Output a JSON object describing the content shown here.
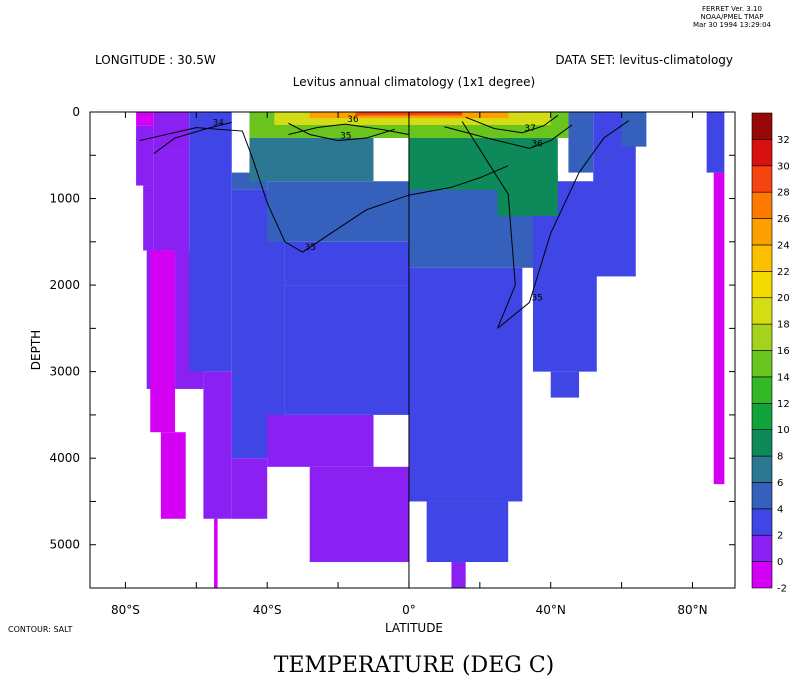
{
  "header": {
    "stamp_lines": [
      "FERRET Ver. 3.10",
      "NOAA/PMEL TMAP",
      "Mar 30 1994 13:29:04"
    ],
    "longitude": "LONGITUDE : 30.5W",
    "dataset": "DATA SET: levitus-climatology",
    "subtitle": "Levitus annual climatology (1x1 degree)"
  },
  "footer": {
    "contour_note": "CONTOUR: SALT",
    "title": "TEMPERATURE (DEG C)"
  },
  "chart_data": {
    "type": "heatmap",
    "title": "TEMPERATURE (DEG C)",
    "subtitle": "Levitus annual climatology (1x1 degree)",
    "xlabel": "LATITUDE",
    "ylabel": "DEPTH",
    "xlim": [
      -90,
      92
    ],
    "ylim": [
      5500,
      0
    ],
    "x_ticks": [
      {
        "value": -80,
        "label": "80°S"
      },
      {
        "value": -40,
        "label": "40°S"
      },
      {
        "value": 0,
        "label": "0°"
      },
      {
        "value": 40,
        "label": "40°N"
      },
      {
        "value": 80,
        "label": "80°N"
      }
    ],
    "y_ticks": [
      {
        "value": 0,
        "label": "0"
      },
      {
        "value": 1000,
        "label": "1000"
      },
      {
        "value": 2000,
        "label": "2000"
      },
      {
        "value": 3000,
        "label": "3000"
      },
      {
        "value": 4000,
        "label": "4000"
      },
      {
        "value": 5000,
        "label": "5000"
      }
    ],
    "colorbar": {
      "levels": [
        -2,
        0,
        2,
        4,
        6,
        8,
        10,
        12,
        14,
        16,
        18,
        20,
        22,
        24,
        26,
        28,
        30,
        32
      ],
      "labels": [
        "-2",
        "0",
        "2",
        "4",
        "6",
        "8",
        "10",
        "12",
        "14",
        "16",
        "18",
        "20",
        "22",
        "24",
        "26",
        "28",
        "30",
        "32"
      ],
      "colors": [
        "#d400f4",
        "#8a20f2",
        "#4046e6",
        "#3560bc",
        "#2c7892",
        "#0e8a5a",
        "#12a23c",
        "#34b828",
        "#6ac41e",
        "#a4d21e",
        "#d4dc14",
        "#f4dc00",
        "#fcc000",
        "#fca000",
        "#fc7a00",
        "#f44410",
        "#d81010",
        "#980808"
      ]
    },
    "cells": [
      {
        "lat": [
          -77,
          -72
        ],
        "depth": [
          0,
          160
        ],
        "band": 0
      },
      {
        "lat": [
          -77,
          -72
        ],
        "depth": [
          160,
          850
        ],
        "band": 1
      },
      {
        "lat": [
          -75,
          -72
        ],
        "depth": [
          850,
          1600
        ],
        "band": 1
      },
      {
        "lat": [
          -74,
          -71
        ],
        "depth": [
          1600,
          3200
        ],
        "band": 1
      },
      {
        "lat": [
          -73,
          -66
        ],
        "depth": [
          1600,
          3700
        ],
        "band": 0
      },
      {
        "lat": [
          -72,
          -62
        ],
        "depth": [
          0,
          450
        ],
        "band": 1
      },
      {
        "lat": [
          -72,
          -62
        ],
        "depth": [
          450,
          1600
        ],
        "band": 1
      },
      {
        "lat": [
          -70,
          -63
        ],
        "depth": [
          3700,
          4700
        ],
        "band": 0
      },
      {
        "lat": [
          -66,
          -58
        ],
        "depth": [
          1600,
          3200
        ],
        "band": 1
      },
      {
        "lat": [
          -62,
          -50
        ],
        "depth": [
          0,
          3000
        ],
        "band": 2
      },
      {
        "lat": [
          -58,
          -50
        ],
        "depth": [
          3000,
          4700
        ],
        "band": 1
      },
      {
        "lat": [
          -55,
          -54
        ],
        "depth": [
          4700,
          5500
        ],
        "band": 0
      },
      {
        "lat": [
          -50,
          -35
        ],
        "depth": [
          900,
          4000
        ],
        "band": 2
      },
      {
        "lat": [
          -50,
          -40
        ],
        "depth": [
          4000,
          4700
        ],
        "band": 1
      },
      {
        "lat": [
          -50,
          -40
        ],
        "depth": [
          700,
          900
        ],
        "band": 3
      },
      {
        "lat": [
          -40,
          -10
        ],
        "depth": [
          3500,
          4100
        ],
        "band": 1
      },
      {
        "lat": [
          -35,
          0
        ],
        "depth": [
          2000,
          3500
        ],
        "band": 2
      },
      {
        "lat": [
          -28,
          0
        ],
        "depth": [
          4100,
          5200
        ],
        "band": 1
      },
      {
        "lat": [
          -35,
          0
        ],
        "depth": [
          1500,
          2000
        ],
        "band": 2
      },
      {
        "lat": [
          -40,
          0
        ],
        "depth": [
          800,
          1500
        ],
        "band": 3
      },
      {
        "lat": [
          0,
          35
        ],
        "depth": [
          800,
          1800
        ],
        "band": 3
      },
      {
        "lat": [
          0,
          32
        ],
        "depth": [
          1800,
          4500
        ],
        "band": 2
      },
      {
        "lat": [
          5,
          28
        ],
        "depth": [
          4500,
          5200
        ],
        "band": 2
      },
      {
        "lat": [
          12,
          16
        ],
        "depth": [
          5200,
          5500
        ],
        "band": 1
      },
      {
        "lat": [
          35,
          53
        ],
        "depth": [
          800,
          3000
        ],
        "band": 2
      },
      {
        "lat": [
          40,
          48
        ],
        "depth": [
          3000,
          3300
        ],
        "band": 2
      },
      {
        "lat": [
          45,
          52
        ],
        "depth": [
          0,
          700
        ],
        "band": 3
      },
      {
        "lat": [
          52,
          64
        ],
        "depth": [
          0,
          1900
        ],
        "band": 2
      },
      {
        "lat": [
          60,
          67
        ],
        "depth": [
          0,
          400
        ],
        "band": 3
      },
      {
        "lat": [
          84,
          89
        ],
        "depth": [
          0,
          700
        ],
        "band": 2
      },
      {
        "lat": [
          86,
          89
        ],
        "depth": [
          700,
          4300
        ],
        "band": 0
      },
      {
        "lat": [
          -45,
          -10
        ],
        "depth": [
          300,
          800
        ],
        "band": 4
      },
      {
        "lat": [
          0,
          42
        ],
        "depth": [
          300,
          900
        ],
        "band": 5
      },
      {
        "lat": [
          25,
          42
        ],
        "depth": [
          700,
          1200
        ],
        "band": 5
      },
      {
        "lat": [
          -45,
          45
        ],
        "depth": [
          0,
          300
        ],
        "band": 8
      },
      {
        "lat": [
          -38,
          40
        ],
        "depth": [
          0,
          150
        ],
        "band": 10
      },
      {
        "lat": [
          -28,
          28
        ],
        "depth": [
          0,
          70
        ],
        "band": 13
      },
      {
        "lat": [
          -15,
          15
        ],
        "depth": [
          0,
          40
        ],
        "band": 15
      }
    ],
    "contours": [
      {
        "label": "34",
        "points": [
          [
            -72,
            480
          ],
          [
            -66,
            300
          ],
          [
            -56,
            180
          ],
          [
            -50,
            120
          ]
        ]
      },
      {
        "label": "35",
        "points": [
          [
            -76,
            330
          ],
          [
            -60,
            180
          ],
          [
            -47,
            220
          ],
          [
            -44,
            550
          ],
          [
            -40,
            1050
          ],
          [
            -35,
            1500
          ],
          [
            -30,
            1620
          ],
          [
            -22,
            1400
          ],
          [
            -12,
            1130
          ],
          [
            0,
            960
          ],
          [
            12,
            870
          ],
          [
            20,
            760
          ],
          [
            28,
            620
          ]
        ]
      },
      {
        "label": "35",
        "points": [
          [
            15,
            110
          ],
          [
            28,
            950
          ],
          [
            30,
            2000
          ],
          [
            25,
            2500
          ],
          [
            34,
            2200
          ],
          [
            40,
            1400
          ],
          [
            48,
            700
          ],
          [
            55,
            300
          ],
          [
            62,
            100
          ]
        ]
      },
      {
        "label": "35",
        "points": [
          [
            -34,
            130
          ],
          [
            -28,
            260
          ],
          [
            -20,
            330
          ],
          [
            -12,
            300
          ],
          [
            -4,
            200
          ]
        ]
      },
      {
        "label": "36",
        "points": [
          [
            -34,
            260
          ],
          [
            -26,
            180
          ],
          [
            -18,
            140
          ],
          [
            -8,
            200
          ],
          [
            0,
            260
          ]
        ]
      },
      {
        "label": "36",
        "points": [
          [
            10,
            170
          ],
          [
            22,
            300
          ],
          [
            34,
            420
          ],
          [
            40,
            330
          ],
          [
            46,
            150
          ]
        ]
      },
      {
        "label": "37",
        "points": [
          [
            16,
            60
          ],
          [
            24,
            190
          ],
          [
            32,
            240
          ],
          [
            38,
            160
          ],
          [
            42,
            40
          ]
        ]
      }
    ],
    "contour_labels": [
      "34",
      "35",
      "35",
      "36",
      "36",
      "37",
      "35",
      "35",
      "35"
    ]
  }
}
